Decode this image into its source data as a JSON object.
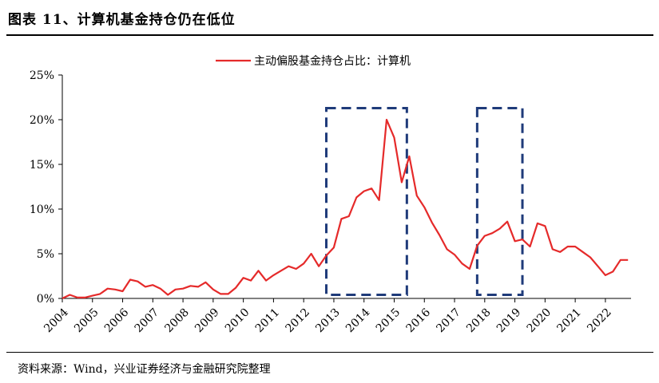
{
  "header": {
    "title": "图表 11、计算机基金持仓仍在低位"
  },
  "footer": {
    "source": "资料来源：Wind，兴业证券经济与金融研究院整理"
  },
  "chart_data": {
    "type": "line",
    "title": "",
    "xlabel": "",
    "ylabel": "",
    "ylim": [
      0,
      25
    ],
    "xlim": [
      2004,
      2022.85
    ],
    "grid": false,
    "legend": "top-center",
    "y_ticks": [
      {
        "value": 0,
        "label": "0%"
      },
      {
        "value": 5,
        "label": "5%"
      },
      {
        "value": 10,
        "label": "10%"
      },
      {
        "value": 15,
        "label": "15%"
      },
      {
        "value": 20,
        "label": "20%"
      },
      {
        "value": 25,
        "label": "25%"
      }
    ],
    "x_ticks": [
      "2004",
      "2005",
      "2006",
      "2007",
      "2008",
      "2009",
      "2010",
      "2011",
      "2012",
      "2013",
      "2014",
      "2015",
      "2016",
      "2017",
      "2018",
      "2019",
      "2020",
      "2021",
      "2022"
    ],
    "series": [
      {
        "name": "主动偏股基金持仓占比：计算机",
        "color": "#e52a2a",
        "x": [
          2004.0,
          2004.25,
          2004.5,
          2004.75,
          2005.0,
          2005.25,
          2005.5,
          2005.75,
          2006.0,
          2006.25,
          2006.5,
          2006.75,
          2007.0,
          2007.25,
          2007.5,
          2007.75,
          2008.0,
          2008.25,
          2008.5,
          2008.75,
          2009.0,
          2009.25,
          2009.5,
          2009.75,
          2010.0,
          2010.25,
          2010.5,
          2010.75,
          2011.0,
          2011.25,
          2011.5,
          2011.75,
          2012.0,
          2012.25,
          2012.5,
          2012.75,
          2013.0,
          2013.25,
          2013.5,
          2013.75,
          2014.0,
          2014.25,
          2014.5,
          2014.75,
          2015.0,
          2015.25,
          2015.5,
          2015.75,
          2016.0,
          2016.25,
          2016.5,
          2016.75,
          2017.0,
          2017.25,
          2017.5,
          2017.75,
          2018.0,
          2018.25,
          2018.5,
          2018.75,
          2019.0,
          2019.25,
          2019.5,
          2019.75,
          2020.0,
          2020.25,
          2020.5,
          2020.75,
          2021.0,
          2021.25,
          2021.5,
          2021.75,
          2022.0,
          2022.25,
          2022.5,
          2022.75
        ],
        "y": [
          0.0,
          0.4,
          0.1,
          0.1,
          0.3,
          0.5,
          1.1,
          1.0,
          0.8,
          2.1,
          1.9,
          1.3,
          1.5,
          1.1,
          0.4,
          1.0,
          1.1,
          1.4,
          1.3,
          1.8,
          1.0,
          0.5,
          0.5,
          1.2,
          2.3,
          2.0,
          3.1,
          2.0,
          2.6,
          3.1,
          3.6,
          3.3,
          3.9,
          5.0,
          3.6,
          4.8,
          5.7,
          8.9,
          9.2,
          11.3,
          12.0,
          12.3,
          11.0,
          20.0,
          18.0,
          13.0,
          15.9,
          11.5,
          10.2,
          8.5,
          7.1,
          5.5,
          4.9,
          3.9,
          3.3,
          5.9,
          7.0,
          7.3,
          7.8,
          8.6,
          6.4,
          6.6,
          5.8,
          8.4,
          8.1,
          5.5,
          5.2,
          5.8,
          5.8,
          5.2,
          4.6,
          3.6,
          2.6,
          3.0,
          4.3,
          4.3
        ]
      }
    ],
    "annotations": [
      {
        "type": "dashed-box",
        "x_range": [
          2012.75,
          2015.42
        ],
        "y_range": [
          0.4,
          21.3
        ],
        "color": "#1f3b7a"
      },
      {
        "type": "dashed-box",
        "x_range": [
          2017.75,
          2019.25
        ],
        "y_range": [
          0.4,
          21.3
        ],
        "color": "#1f3b7a"
      }
    ]
  }
}
